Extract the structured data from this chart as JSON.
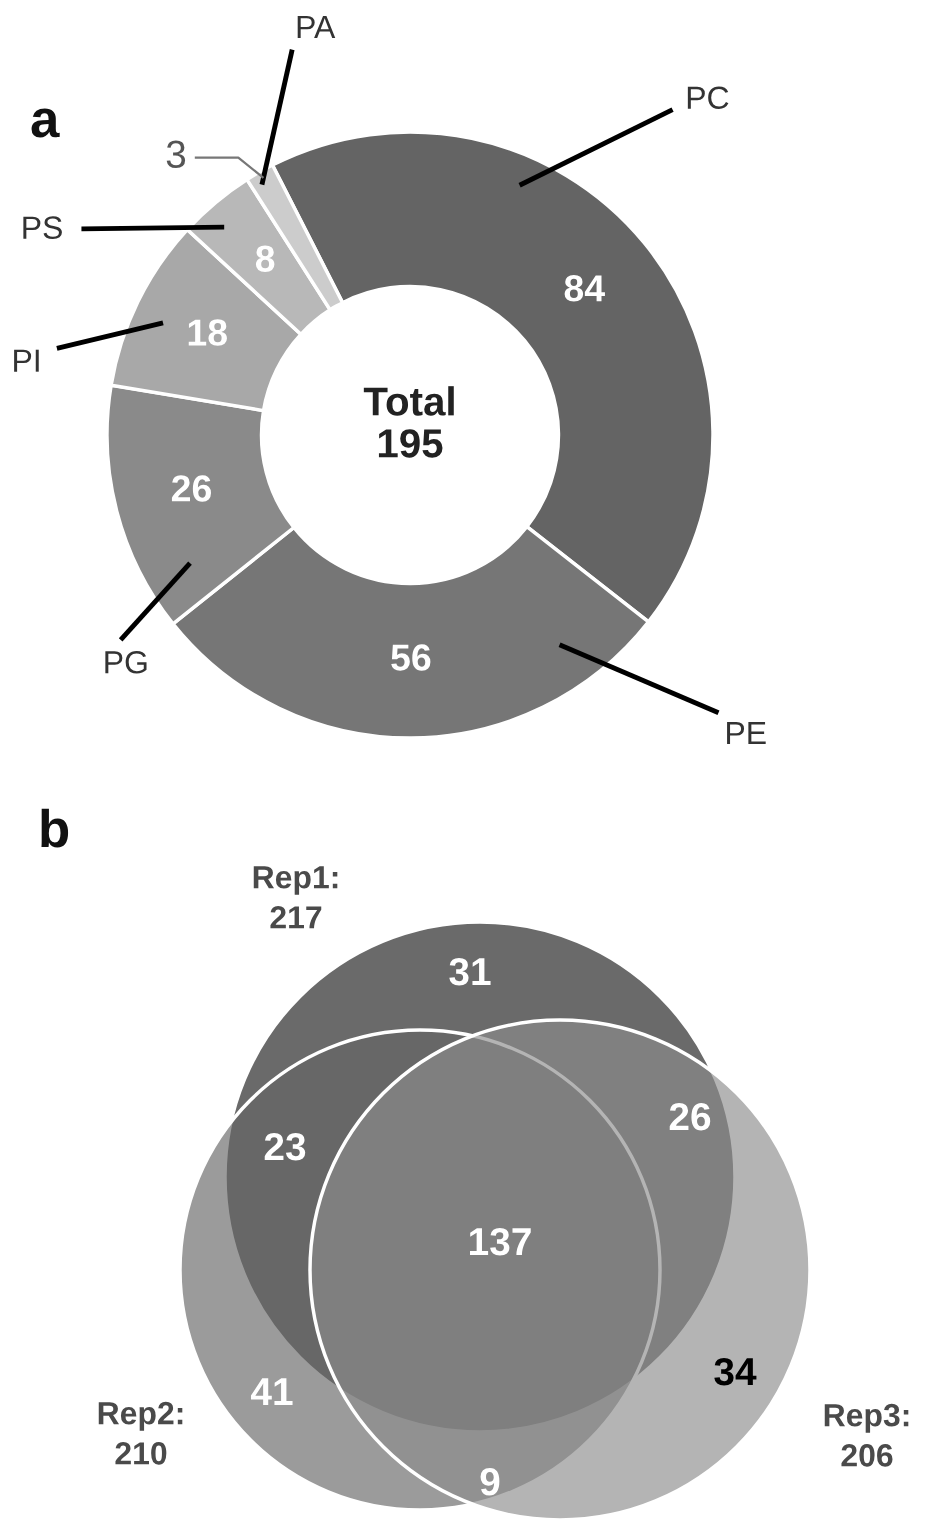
{
  "chart_data": [
    {
      "type": "donut",
      "title": "a",
      "categories": [
        "PC",
        "PE",
        "PG",
        "PI",
        "PS",
        "PA"
      ],
      "values": [
        84,
        56,
        26,
        18,
        8,
        3
      ],
      "colors": [
        "#646464",
        "#767676",
        "#8a8a8a",
        "#a8a8a8",
        "#b8b8b8",
        "#cccccc"
      ],
      "data_labels": true,
      "annotations": [
        "Total\n195"
      ]
    },
    {
      "type": "other",
      "title": "b",
      "annotations": [
        "Rep1:\n217",
        "Rep2:\n210",
        "Rep3:\n206",
        "31",
        "23",
        "26",
        "137",
        "41",
        "34",
        "9"
      ]
    }
  ]
}
